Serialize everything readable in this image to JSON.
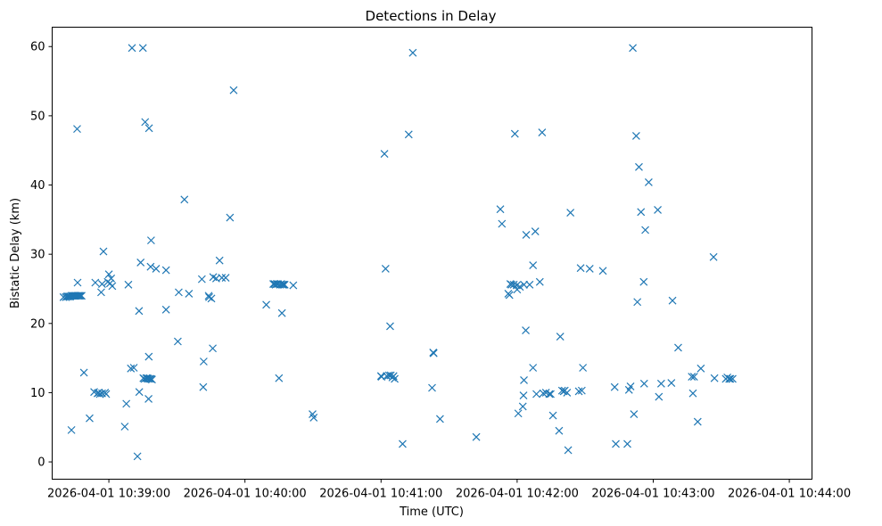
{
  "chart_data": {
    "type": "scatter",
    "title": "Detections in Delay",
    "xlabel": "Time (UTC)",
    "ylabel": "Bistatic Delay (km)",
    "x_unit": "seconds since 2026-04-01 10:38:40 UTC",
    "xlim": [
      -5,
      330
    ],
    "ylim": [
      -2.5,
      62.8
    ],
    "grid": false,
    "marker": "x",
    "color": "#1f77b4",
    "xticks": [
      {
        "value": 20,
        "label": "2026-04-01 10:39:00"
      },
      {
        "value": 80,
        "label": "2026-04-01 10:40:00"
      },
      {
        "value": 140,
        "label": "2026-04-01 10:41:00"
      },
      {
        "value": 200,
        "label": "2026-04-01 10:42:00"
      },
      {
        "value": 260,
        "label": "2026-04-01 10:43:00"
      },
      {
        "value": 320,
        "label": "2026-04-01 10:44:00"
      }
    ],
    "yticks": [
      0,
      10,
      20,
      30,
      40,
      50,
      60
    ],
    "points": [
      [
        0,
        23.8
      ],
      [
        1,
        23.8
      ],
      [
        1.5,
        23.9
      ],
      [
        2,
        23.9
      ],
      [
        2.5,
        23.9
      ],
      [
        3,
        23.9
      ],
      [
        3.5,
        24
      ],
      [
        4,
        24
      ],
      [
        4.5,
        24
      ],
      [
        5,
        24
      ],
      [
        5.5,
        24
      ],
      [
        6,
        24
      ],
      [
        6.5,
        24
      ],
      [
        7,
        24
      ],
      [
        7.5,
        24
      ],
      [
        8,
        24
      ],
      [
        3.5,
        4.6
      ],
      [
        6,
        48.1
      ],
      [
        6.2,
        25.9
      ],
      [
        9,
        12.9
      ],
      [
        11.5,
        6.3
      ],
      [
        13.5,
        10.1
      ],
      [
        14,
        25.9
      ],
      [
        15,
        9.9
      ],
      [
        15.5,
        10
      ],
      [
        16,
        9.8
      ],
      [
        17,
        9.9
      ],
      [
        16.6,
        24.5
      ],
      [
        17,
        25.7
      ],
      [
        17.6,
        30.4
      ],
      [
        18.3,
        10
      ],
      [
        18.8,
        9.8
      ],
      [
        19.5,
        26
      ],
      [
        20,
        27.1
      ],
      [
        20.5,
        25.8
      ],
      [
        21,
        26.5
      ],
      [
        21.5,
        25.4
      ],
      [
        27,
        5.1
      ],
      [
        27.7,
        8.4
      ],
      [
        28.6,
        25.6
      ],
      [
        29.7,
        13.5
      ],
      [
        30.2,
        59.8
      ],
      [
        31,
        13.6
      ],
      [
        32.6,
        0.8
      ],
      [
        33.3,
        21.8
      ],
      [
        33.4,
        10.1
      ],
      [
        34,
        28.8
      ],
      [
        35,
        59.8
      ],
      [
        35.2,
        12.1
      ],
      [
        35.7,
        12
      ],
      [
        36,
        49.1
      ],
      [
        36.5,
        12.1
      ],
      [
        37,
        12.1
      ],
      [
        37.3,
        12
      ],
      [
        37.5,
        9.1
      ],
      [
        37.6,
        15.2
      ],
      [
        37.7,
        48.2
      ],
      [
        38,
        12
      ],
      [
        38.4,
        28.2
      ],
      [
        38.6,
        32
      ],
      [
        38.6,
        12
      ],
      [
        39,
        11.9
      ],
      [
        40.8,
        27.9
      ],
      [
        45.2,
        22
      ],
      [
        45.2,
        27.7
      ],
      [
        50.4,
        17.4
      ],
      [
        50.8,
        24.5
      ],
      [
        53.3,
        37.9
      ],
      [
        55.3,
        24.3
      ],
      [
        61,
        26.4
      ],
      [
        61.6,
        10.8
      ],
      [
        61.8,
        14.5
      ],
      [
        64,
        24
      ],
      [
        64.2,
        23.8
      ],
      [
        65.2,
        23.6
      ],
      [
        65.8,
        16.4
      ],
      [
        66,
        26.7
      ],
      [
        67.3,
        26.5
      ],
      [
        68.8,
        29.1
      ],
      [
        69.8,
        26.6
      ],
      [
        71.5,
        26.6
      ],
      [
        73.4,
        35.3
      ],
      [
        75,
        53.7
      ],
      [
        89.4,
        22.7
      ],
      [
        95,
        12.1
      ],
      [
        92.5,
        25.7
      ],
      [
        93,
        25.7
      ],
      [
        93.5,
        25.6
      ],
      [
        94,
        25.7
      ],
      [
        94.5,
        25.7
      ],
      [
        95.5,
        25.6
      ],
      [
        96,
        25.7
      ],
      [
        96.3,
        21.5
      ],
      [
        96.5,
        25.6
      ],
      [
        97,
        25.6
      ],
      [
        97.5,
        25.6
      ],
      [
        101.3,
        25.5
      ],
      [
        109.8,
        6.9
      ],
      [
        110.3,
        6.4
      ],
      [
        140,
        12.4
      ],
      [
        140.2,
        12.3
      ],
      [
        141.5,
        44.5
      ],
      [
        142,
        27.9
      ],
      [
        142.5,
        12.4
      ],
      [
        143.5,
        12.5
      ],
      [
        144,
        19.6
      ],
      [
        144.3,
        12.5
      ],
      [
        145,
        12.2
      ],
      [
        145.5,
        12.4
      ],
      [
        146,
        12
      ],
      [
        152.2,
        47.3
      ],
      [
        154,
        59.1
      ],
      [
        149.5,
        2.6
      ],
      [
        163.2,
        15.7
      ],
      [
        162.5,
        10.7
      ],
      [
        163,
        15.8
      ],
      [
        166,
        6.2
      ],
      [
        182,
        3.6
      ],
      [
        192.6,
        36.5
      ],
      [
        193.3,
        34.4
      ],
      [
        196.1,
        24.3
      ],
      [
        196.6,
        24.1
      ],
      [
        197,
        25.7
      ],
      [
        197.5,
        25.6
      ],
      [
        198.5,
        25.6
      ],
      [
        199,
        47.4
      ],
      [
        199.8,
        25.5
      ],
      [
        200,
        24.9
      ],
      [
        200.5,
        7
      ],
      [
        201.2,
        25.3
      ],
      [
        202.5,
        8
      ],
      [
        202.8,
        9.6
      ],
      [
        203,
        11.8
      ],
      [
        203,
        25.6
      ],
      [
        203.8,
        19
      ],
      [
        204,
        32.8
      ],
      [
        205.5,
        25.6
      ],
      [
        207,
        28.4
      ],
      [
        207,
        13.6
      ],
      [
        208,
        33.3
      ],
      [
        208.5,
        9.8
      ],
      [
        210,
        26
      ],
      [
        211,
        47.6
      ],
      [
        211.5,
        9.9
      ],
      [
        212.7,
        10
      ],
      [
        214.2,
        9.8
      ],
      [
        214.8,
        9.8
      ],
      [
        215.8,
        6.7
      ],
      [
        218.5,
        4.5
      ],
      [
        219,
        18.1
      ],
      [
        219.8,
        10.3
      ],
      [
        220.5,
        10.2
      ],
      [
        221,
        10.3
      ],
      [
        222,
        10
      ],
      [
        222.5,
        1.7
      ],
      [
        223.5,
        36
      ],
      [
        227.2,
        10.2
      ],
      [
        228,
        28
      ],
      [
        228.5,
        10.3
      ],
      [
        229,
        13.6
      ],
      [
        232,
        27.9
      ],
      [
        237.8,
        27.6
      ],
      [
        243,
        10.8
      ],
      [
        243.5,
        2.6
      ],
      [
        248.6,
        2.6
      ],
      [
        249.3,
        10.4
      ],
      [
        250,
        10.9
      ],
      [
        251,
        59.8
      ],
      [
        251.5,
        6.9
      ],
      [
        252.5,
        47.1
      ],
      [
        253,
        23.1
      ],
      [
        253.7,
        42.6
      ],
      [
        254.6,
        36.1
      ],
      [
        255.8,
        26
      ],
      [
        256,
        11.3
      ],
      [
        256.5,
        33.5
      ],
      [
        258,
        40.4
      ],
      [
        262,
        36.4
      ],
      [
        262.5,
        9.4
      ],
      [
        263.5,
        11.3
      ],
      [
        268,
        11.4
      ],
      [
        268.5,
        23.3
      ],
      [
        271,
        16.5
      ],
      [
        277,
        12.3
      ],
      [
        277.5,
        9.9
      ],
      [
        278,
        12.3
      ],
      [
        279.6,
        5.8
      ],
      [
        281,
        13.5
      ],
      [
        286.6,
        29.6
      ],
      [
        287,
        12.1
      ],
      [
        292,
        12
      ],
      [
        292.7,
        12.2
      ],
      [
        293.5,
        12
      ],
      [
        294,
        12
      ],
      [
        295,
        12
      ]
    ]
  }
}
